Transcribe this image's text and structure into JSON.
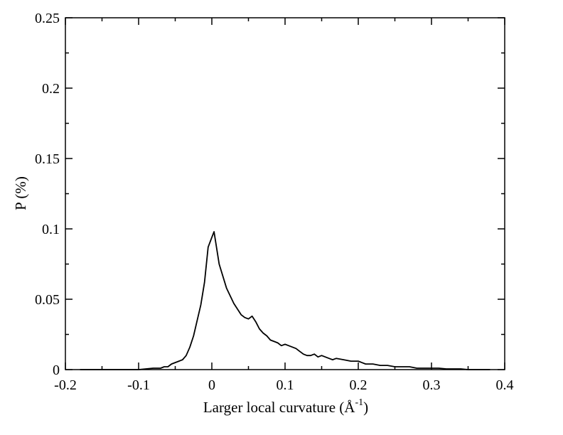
{
  "chart_data": {
    "type": "line",
    "xlabel": "Larger local curvature (Å",
    "xlabel_sup": "-1",
    "xlabel_close": ")",
    "ylabel": "P (%)",
    "xlim": [
      -0.2,
      0.4
    ],
    "ylim": [
      0,
      0.25
    ],
    "xticks": [
      -0.2,
      -0.1,
      0,
      0.1,
      0.2,
      0.3,
      0.4
    ],
    "xtick_labels": [
      "-0.2",
      "-0.1",
      "0",
      "0.1",
      "0.2",
      "0.3",
      "0.4"
    ],
    "yticks": [
      0,
      0.05,
      0.1,
      0.15,
      0.2,
      0.25
    ],
    "ytick_labels": [
      "0",
      "0.05",
      "0.1",
      "0.15",
      "0.2",
      "0.25"
    ],
    "grid": false,
    "series": [
      {
        "color": "#000000",
        "x": [
          -0.18,
          -0.16,
          -0.14,
          -0.12,
          -0.11,
          -0.1,
          -0.09,
          -0.08,
          -0.07,
          -0.065,
          -0.06,
          -0.055,
          -0.05,
          -0.045,
          -0.04,
          -0.035,
          -0.03,
          -0.025,
          -0.02,
          -0.015,
          -0.01,
          -0.005,
          0.0,
          0.003,
          0.01,
          0.02,
          0.03,
          0.04,
          0.045,
          0.05,
          0.055,
          0.06,
          0.065,
          0.07,
          0.075,
          0.08,
          0.085,
          0.09,
          0.095,
          0.1,
          0.105,
          0.11,
          0.115,
          0.12,
          0.125,
          0.13,
          0.135,
          0.14,
          0.145,
          0.15,
          0.155,
          0.16,
          0.165,
          0.17,
          0.18,
          0.19,
          0.2,
          0.21,
          0.22,
          0.23,
          0.24,
          0.25,
          0.26,
          0.27,
          0.28,
          0.29,
          0.3,
          0.31,
          0.32,
          0.33,
          0.34,
          0.35,
          0.36,
          0.37,
          0.38
        ],
        "y": [
          0.0,
          0.0,
          0.0,
          0.0,
          0.0,
          0.0,
          0.0005,
          0.001,
          0.001,
          0.002,
          0.002,
          0.004,
          0.005,
          0.006,
          0.007,
          0.01,
          0.016,
          0.024,
          0.035,
          0.046,
          0.062,
          0.087,
          0.094,
          0.098,
          0.075,
          0.058,
          0.047,
          0.039,
          0.037,
          0.036,
          0.038,
          0.034,
          0.029,
          0.026,
          0.024,
          0.021,
          0.02,
          0.019,
          0.017,
          0.018,
          0.017,
          0.016,
          0.015,
          0.013,
          0.011,
          0.01,
          0.01,
          0.011,
          0.009,
          0.01,
          0.009,
          0.008,
          0.007,
          0.008,
          0.007,
          0.006,
          0.006,
          0.004,
          0.004,
          0.003,
          0.003,
          0.002,
          0.002,
          0.002,
          0.001,
          0.001,
          0.001,
          0.001,
          0.0005,
          0.0005,
          0.0005,
          0.0,
          0.0,
          0.0,
          0.0
        ]
      }
    ]
  }
}
